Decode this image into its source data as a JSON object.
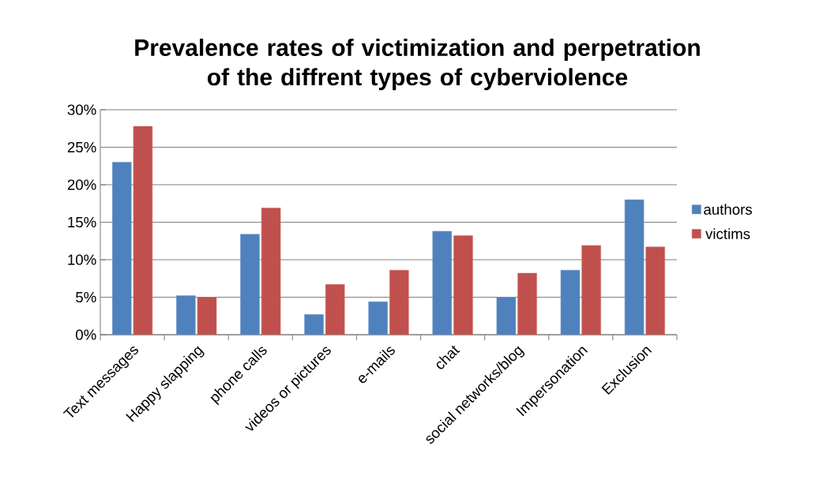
{
  "chart_data": {
    "type": "bar",
    "title": "Prevalence rates of victimization and perpetration of the diffrent types of cyberviolence",
    "categories": [
      "Text messages",
      "Happy slapping",
      "phone calls",
      "videos or pictures",
      "e-mails",
      "chat",
      "social networks/blog",
      "Impersonation",
      "Exclusion"
    ],
    "series": [
      {
        "name": "authors",
        "color": "#4f81bd",
        "values": [
          23,
          5.2,
          13.4,
          2.7,
          4.4,
          13.8,
          5.0,
          8.6,
          18.0
        ]
      },
      {
        "name": "victims",
        "color": "#c0504d",
        "values": [
          27.8,
          5.0,
          16.9,
          6.7,
          8.6,
          13.2,
          8.2,
          11.9,
          11.7
        ]
      }
    ],
    "ylim": [
      0,
      30
    ],
    "yticks": [
      {
        "value": 0,
        "label": "0%"
      },
      {
        "value": 5,
        "label": "5%"
      },
      {
        "value": 10,
        "label": "10%"
      },
      {
        "value": 15,
        "label": "15%"
      },
      {
        "value": 20,
        "label": "20%"
      },
      {
        "value": 25,
        "label": "25%"
      },
      {
        "value": 30,
        "label": "30%"
      }
    ],
    "grid": "y",
    "legend": "right"
  }
}
